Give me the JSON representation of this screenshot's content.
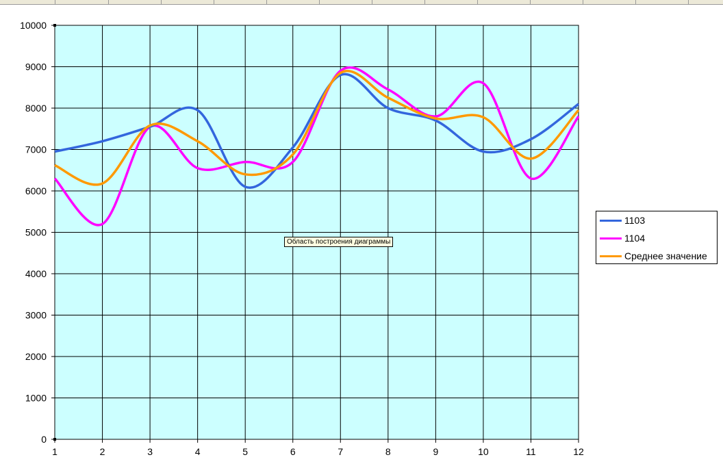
{
  "tooltip": {
    "text": "Область построения диаграммы"
  },
  "colors": {
    "plot_bg": "#ccffff",
    "grid": "#000000",
    "series_1104": "#ff00ff",
    "series_1103": "#3366dd",
    "series_avg": "#ff9900"
  },
  "chart_data": {
    "type": "line",
    "smooth": true,
    "x": [
      1,
      2,
      3,
      4,
      5,
      6,
      7,
      8,
      9,
      10,
      11,
      12
    ],
    "ylim": [
      0,
      10000
    ],
    "yticks": [
      0,
      1000,
      2000,
      3000,
      4000,
      5000,
      6000,
      7000,
      8000,
      9000,
      10000
    ],
    "grid": true,
    "legend_position": "right",
    "series": [
      {
        "name": "1103",
        "color": "#3366dd",
        "values": [
          6950,
          7200,
          7550,
          7950,
          6100,
          7050,
          8800,
          8000,
          7700,
          6950,
          7250,
          8100
        ]
      },
      {
        "name": "1104",
        "color": "#ff00ff",
        "values": [
          6300,
          5200,
          7550,
          6550,
          6700,
          6700,
          8900,
          8450,
          7800,
          8600,
          6300,
          7800
        ]
      },
      {
        "name": "Среднее значение",
        "color": "#ff9900",
        "values": [
          6620,
          6180,
          7580,
          7200,
          6400,
          6880,
          8850,
          8250,
          7750,
          7780,
          6780,
          7950
        ]
      }
    ]
  }
}
